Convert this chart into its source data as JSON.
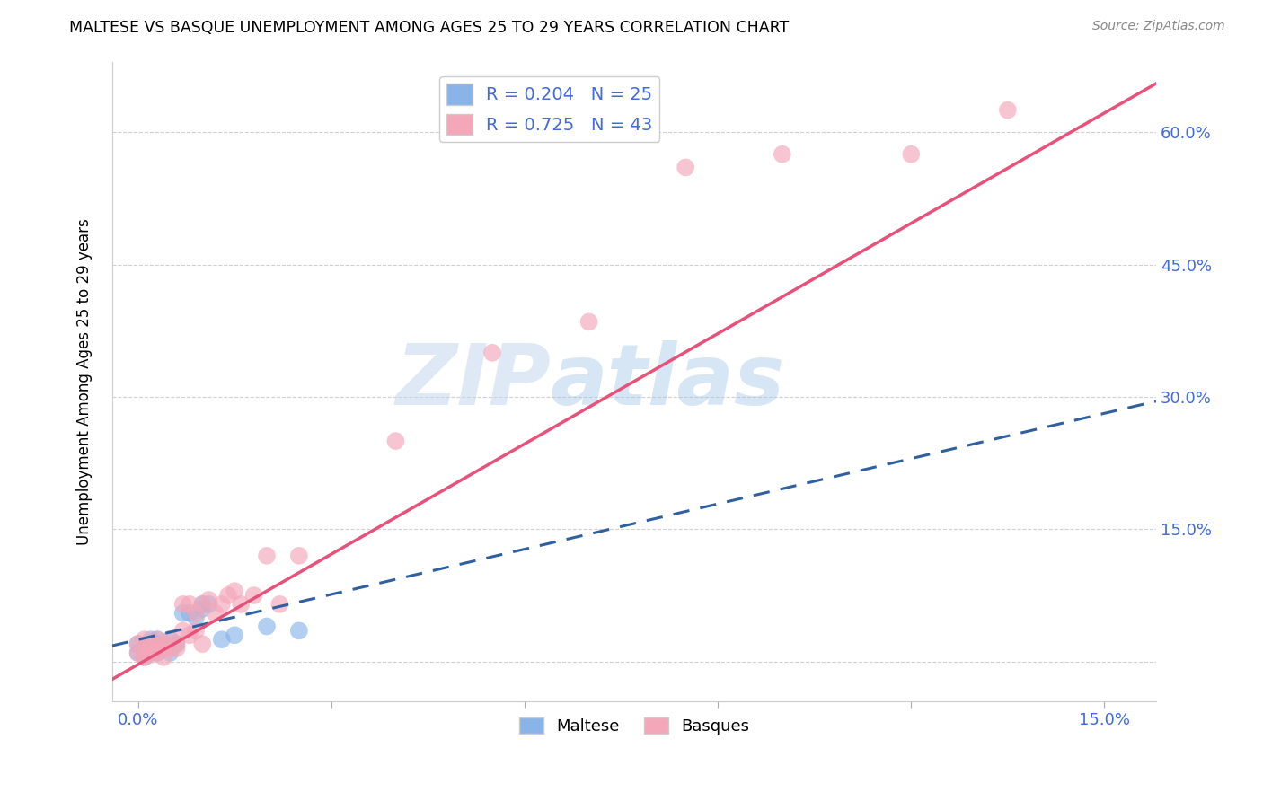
{
  "title": "MALTESE VS BASQUE UNEMPLOYMENT AMONG AGES 25 TO 29 YEARS CORRELATION CHART",
  "source": "Source: ZipAtlas.com",
  "ylabel": "Unemployment Among Ages 25 to 29 years",
  "x_ticks": [
    0.0,
    0.03,
    0.06,
    0.09,
    0.12,
    0.15
  ],
  "x_tick_labels": [
    "0.0%",
    "",
    "",
    "",
    "",
    "15.0%"
  ],
  "y_ticks": [
    0.0,
    0.15,
    0.3,
    0.45,
    0.6
  ],
  "y_tick_labels": [
    "",
    "15.0%",
    "30.0%",
    "45.0%",
    "60.0%"
  ],
  "xlim": [
    -0.004,
    0.158
  ],
  "ylim": [
    -0.045,
    0.68
  ],
  "maltese_R": 0.204,
  "maltese_N": 25,
  "basque_R": 0.725,
  "basque_N": 43,
  "maltese_color": "#89b4e8",
  "basque_color": "#f4a7b9",
  "maltese_line_color": "#3060a0",
  "basque_line_color": "#e8527a",
  "watermark_zip": "ZIP",
  "watermark_atlas": "atlas",
  "maltese_x": [
    0.0,
    0.0,
    0.001,
    0.001,
    0.002,
    0.002,
    0.002,
    0.003,
    0.003,
    0.003,
    0.004,
    0.004,
    0.005,
    0.005,
    0.006,
    0.007,
    0.008,
    0.009,
    0.01,
    0.01,
    0.011,
    0.013,
    0.015,
    0.02,
    0.025
  ],
  "maltese_y": [
    0.01,
    0.02,
    0.005,
    0.015,
    0.01,
    0.02,
    0.025,
    0.01,
    0.015,
    0.025,
    0.015,
    0.02,
    0.01,
    0.025,
    0.02,
    0.055,
    0.055,
    0.05,
    0.06,
    0.065,
    0.065,
    0.025,
    0.03,
    0.04,
    0.035
  ],
  "basque_x": [
    0.0,
    0.0,
    0.001,
    0.001,
    0.001,
    0.002,
    0.002,
    0.002,
    0.003,
    0.003,
    0.003,
    0.004,
    0.004,
    0.004,
    0.005,
    0.005,
    0.006,
    0.006,
    0.007,
    0.007,
    0.008,
    0.008,
    0.009,
    0.009,
    0.01,
    0.01,
    0.011,
    0.012,
    0.013,
    0.014,
    0.015,
    0.016,
    0.018,
    0.02,
    0.022,
    0.025,
    0.04,
    0.055,
    0.07,
    0.085,
    0.1,
    0.12,
    0.135
  ],
  "basque_y": [
    0.01,
    0.02,
    0.005,
    0.01,
    0.025,
    0.008,
    0.015,
    0.02,
    0.01,
    0.015,
    0.025,
    0.005,
    0.015,
    0.02,
    0.015,
    0.025,
    0.015,
    0.02,
    0.035,
    0.065,
    0.03,
    0.065,
    0.035,
    0.055,
    0.02,
    0.065,
    0.07,
    0.055,
    0.065,
    0.075,
    0.08,
    0.065,
    0.075,
    0.12,
    0.065,
    0.12,
    0.25,
    0.35,
    0.385,
    0.56,
    0.575,
    0.575,
    0.625
  ],
  "maltese_line_x0": -0.004,
  "maltese_line_x1": 0.158,
  "maltese_line_y0": 0.018,
  "maltese_line_y1": 0.295,
  "basque_line_x0": -0.004,
  "basque_line_x1": 0.158,
  "basque_line_y0": -0.02,
  "basque_line_y1": 0.655
}
